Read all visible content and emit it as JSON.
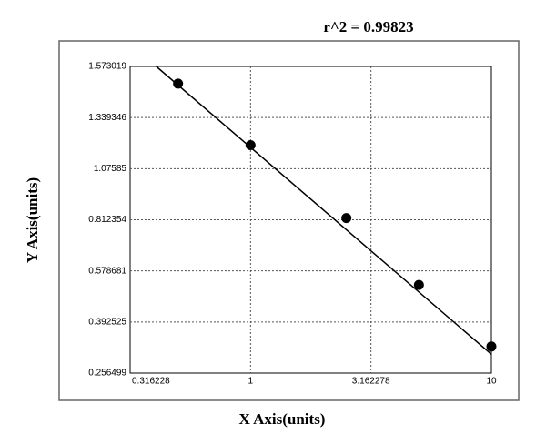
{
  "chart_data": {
    "type": "scatter",
    "title": "r^2  =  0.99823",
    "x_label": "X Axis(units)",
    "y_label": "Y Axis(units)",
    "x": [
      0.5,
      1,
      2.5,
      5,
      10
    ],
    "values": [
      1.49,
      1.19,
      0.82,
      0.52,
      0.32
    ],
    "fit": {
      "x": [
        0.406,
        10
      ],
      "values": [
        1.573019,
        0.3
      ]
    },
    "x_log": true,
    "xlim": [
      0.316228,
      10
    ],
    "xticks": [
      0.316228,
      1,
      3.162278,
      10
    ],
    "ylim": [
      0.256499,
      1.573019
    ],
    "yticks": [
      0.256499,
      0.392525,
      0.578681,
      0.812354,
      1.07585,
      1.339346,
      1.573019
    ],
    "grid": true,
    "color": "#000000"
  }
}
